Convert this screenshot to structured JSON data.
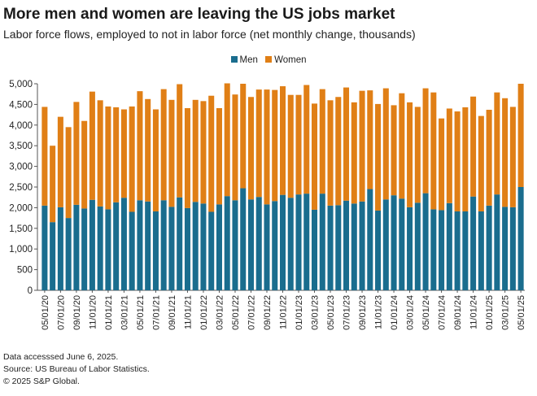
{
  "title": "More men and women are leaving the US jobs market",
  "subtitle": "Labor force flows, employed to not in labor force (net monthly change, thousands)",
  "notes": {
    "accessed": "Data accesssed June 6, 2025.",
    "source": "Source: US Bureau of Labor Statistics.",
    "copyright": "© 2025 S&P Global."
  },
  "colors": {
    "men": "#1a6d8e",
    "women": "#e07f16",
    "axis": "#555555"
  },
  "chart_data": {
    "type": "bar",
    "stacked": true,
    "title": "More men and women are leaving the US jobs market",
    "xlabel": "",
    "ylabel": "",
    "ylim": [
      0,
      5000
    ],
    "yticks": [
      0,
      500,
      1000,
      1500,
      2000,
      2500,
      3000,
      3500,
      4000,
      4500,
      5000
    ],
    "ytick_labels": [
      "0",
      "500",
      "1,000",
      "1,500",
      "2,000",
      "2,500",
      "3,000",
      "3,500",
      "4,000",
      "4,500",
      "5,000"
    ],
    "grid": false,
    "legend_position": "top-center",
    "categories": [
      "05/01/20",
      "06/01/20",
      "07/01/20",
      "08/01/20",
      "09/01/20",
      "10/01/20",
      "11/01/20",
      "12/01/20",
      "01/01/21",
      "02/01/21",
      "03/01/21",
      "04/01/21",
      "05/01/21",
      "06/01/21",
      "07/01/21",
      "08/01/21",
      "09/01/21",
      "10/01/21",
      "11/01/21",
      "12/01/21",
      "01/01/22",
      "02/01/22",
      "03/01/22",
      "04/01/22",
      "05/01/22",
      "06/01/22",
      "07/01/22",
      "08/01/22",
      "09/01/22",
      "10/01/22",
      "11/01/22",
      "12/01/22",
      "01/01/23",
      "02/01/23",
      "03/01/23",
      "04/01/23",
      "05/01/23",
      "06/01/23",
      "07/01/23",
      "08/01/23",
      "09/01/23",
      "10/01/23",
      "11/01/23",
      "12/01/23",
      "01/01/24",
      "02/01/24",
      "03/01/24",
      "04/01/24",
      "05/01/24",
      "06/01/24",
      "07/01/24",
      "08/01/24",
      "09/01/24",
      "10/01/24",
      "11/01/24",
      "12/01/24",
      "01/01/25",
      "02/01/25",
      "03/01/25",
      "04/01/25",
      "05/01/25"
    ],
    "tick_labels": [
      "05/01/20",
      "07/01/20",
      "09/01/20",
      "11/01/20",
      "01/01/21",
      "03/01/21",
      "05/01/21",
      "07/01/21",
      "09/01/21",
      "11/01/21",
      "01/01/22",
      "03/01/22",
      "05/01/22",
      "07/01/22",
      "09/01/22",
      "11/01/22",
      "01/01/23",
      "03/01/23",
      "05/01/23",
      "07/01/23",
      "09/01/23",
      "11/01/23",
      "01/01/24",
      "03/01/24",
      "05/01/24",
      "07/01/24",
      "09/01/24",
      "11/01/24",
      "01/01/25",
      "03/01/25",
      "05/01/25"
    ],
    "series": [
      {
        "name": "Men",
        "values": [
          2050,
          1650,
          2010,
          1750,
          2070,
          1980,
          2190,
          2030,
          1960,
          2130,
          2240,
          1900,
          2180,
          2150,
          1910,
          2180,
          2020,
          2250,
          1990,
          2140,
          2100,
          1900,
          2080,
          2280,
          2180,
          2470,
          2200,
          2260,
          2080,
          2160,
          2310,
          2240,
          2320,
          2340,
          1950,
          2340,
          2050,
          2060,
          2170,
          2100,
          2150,
          2450,
          1930,
          2200,
          2300,
          2220,
          2010,
          2120,
          2350,
          1960,
          1940,
          2110,
          1910,
          1910,
          2270,
          1910,
          2050,
          2320,
          2020,
          2010,
          2500
        ]
      },
      {
        "name": "Women",
        "values": [
          2390,
          1850,
          2190,
          2200,
          2490,
          2120,
          2620,
          2570,
          2490,
          2300,
          2140,
          2550,
          2640,
          2480,
          2470,
          2690,
          2590,
          2740,
          2420,
          2470,
          2480,
          2810,
          2330,
          2730,
          2560,
          2530,
          2480,
          2600,
          2780,
          2690,
          2630,
          2490,
          2410,
          2630,
          2570,
          2530,
          2550,
          2620,
          2740,
          2450,
          2680,
          2390,
          2580,
          2690,
          2180,
          2550,
          2540,
          2320,
          2540,
          2830,
          2220,
          2290,
          2420,
          2520,
          2420,
          2310,
          2320,
          2470,
          2630,
          2430,
          2500
        ]
      }
    ]
  }
}
